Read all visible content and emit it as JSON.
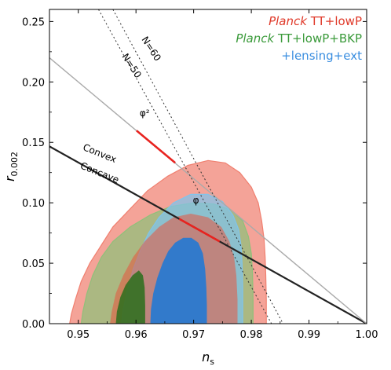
{
  "chart_data": {
    "type": "area",
    "xlabel": "n",
    "xlabel_sub": "s",
    "ylabel": "r",
    "ylabel_sub": "0.002",
    "xlim": [
      0.945,
      1.0
    ],
    "ylim": [
      0.0,
      0.26
    ],
    "x_ticks": [
      0.95,
      0.96,
      0.97,
      0.98,
      0.99,
      1.0
    ],
    "x_tick_labels": [
      "0.95",
      "0.96",
      "0.97",
      "0.98",
      "0.99",
      "1.00"
    ],
    "y_ticks": [
      0.0,
      0.05,
      0.1,
      0.15,
      0.2,
      0.25
    ],
    "y_tick_labels": [
      "0.00",
      "0.05",
      "0.10",
      "0.15",
      "0.20",
      "0.25"
    ],
    "legend_position": "top-right",
    "legend": [
      {
        "italic": "Planck",
        "text": " TT+lowP",
        "color": "#e03a2a"
      },
      {
        "italic": "Planck",
        "text": " TT+lowP+BKP",
        "color": "#3a9a3a"
      },
      {
        "italic": "",
        "text": "+lensing+ext",
        "color": "#3a8ee0"
      }
    ],
    "series": [
      {
        "name": "Planck TT+lowP",
        "color": "#f08070",
        "outer": [
          [
            0.9485,
            0.0
          ],
          [
            0.9488,
            0.008
          ],
          [
            0.9495,
            0.02
          ],
          [
            0.9505,
            0.035
          ],
          [
            0.952,
            0.05
          ],
          [
            0.954,
            0.065
          ],
          [
            0.956,
            0.08
          ],
          [
            0.959,
            0.095
          ],
          [
            0.962,
            0.11
          ],
          [
            0.9655,
            0.122
          ],
          [
            0.969,
            0.131
          ],
          [
            0.9725,
            0.135
          ],
          [
            0.9755,
            0.133
          ],
          [
            0.978,
            0.125
          ],
          [
            0.98,
            0.113
          ],
          [
            0.9812,
            0.1
          ],
          [
            0.9818,
            0.085
          ],
          [
            0.9822,
            0.07
          ],
          [
            0.9824,
            0.055
          ],
          [
            0.9825,
            0.04
          ],
          [
            0.9826,
            0.02
          ],
          [
            0.9826,
            0.0
          ]
        ],
        "inner": [
          [
            0.9555,
            0.0
          ],
          [
            0.9558,
            0.01
          ],
          [
            0.9565,
            0.025
          ],
          [
            0.9578,
            0.04
          ],
          [
            0.9595,
            0.055
          ],
          [
            0.9615,
            0.068
          ],
          [
            0.964,
            0.08
          ],
          [
            0.9665,
            0.088
          ],
          [
            0.9695,
            0.091
          ],
          [
            0.9725,
            0.088
          ],
          [
            0.9748,
            0.08
          ],
          [
            0.9762,
            0.068
          ],
          [
            0.977,
            0.055
          ],
          [
            0.9774,
            0.04
          ],
          [
            0.9776,
            0.02
          ],
          [
            0.9776,
            0.0
          ]
        ]
      },
      {
        "name": "Planck TT+lowP+BKP",
        "color": "#8fc07a",
        "outer": [
          [
            0.9505,
            0.0
          ],
          [
            0.9508,
            0.01
          ],
          [
            0.9515,
            0.025
          ],
          [
            0.9525,
            0.04
          ],
          [
            0.954,
            0.055
          ],
          [
            0.956,
            0.068
          ],
          [
            0.959,
            0.08
          ],
          [
            0.9625,
            0.09
          ],
          [
            0.966,
            0.097
          ],
          [
            0.97,
            0.1
          ],
          [
            0.9735,
            0.099
          ],
          [
            0.9765,
            0.094
          ],
          [
            0.9785,
            0.085
          ],
          [
            0.9795,
            0.072
          ],
          [
            0.98,
            0.058
          ],
          [
            0.9802,
            0.042
          ],
          [
            0.9803,
            0.02
          ],
          [
            0.9803,
            0.0
          ]
        ],
        "inner": [
          [
            0.9565,
            0.0
          ],
          [
            0.9567,
            0.01
          ],
          [
            0.9573,
            0.022
          ],
          [
            0.9582,
            0.032
          ],
          [
            0.9594,
            0.04
          ],
          [
            0.9605,
            0.044
          ],
          [
            0.9612,
            0.04
          ],
          [
            0.9615,
            0.03
          ],
          [
            0.9616,
            0.015
          ],
          [
            0.9616,
            0.0
          ]
        ]
      },
      {
        "name": "+lensing+ext",
        "color": "#7fc4ec",
        "outer": [
          [
            0.9575,
            0.0
          ],
          [
            0.9578,
            0.012
          ],
          [
            0.9585,
            0.028
          ],
          [
            0.9595,
            0.045
          ],
          [
            0.9607,
            0.06
          ],
          [
            0.9622,
            0.075
          ],
          [
            0.964,
            0.088
          ],
          [
            0.9665,
            0.1
          ],
          [
            0.9695,
            0.107
          ],
          [
            0.9725,
            0.107
          ],
          [
            0.975,
            0.101
          ],
          [
            0.9768,
            0.09
          ],
          [
            0.9778,
            0.078
          ],
          [
            0.9782,
            0.065
          ],
          [
            0.9784,
            0.05
          ],
          [
            0.9785,
            0.03
          ],
          [
            0.9785,
            0.0
          ]
        ],
        "inner": [
          [
            0.9625,
            0.0
          ],
          [
            0.9626,
            0.012
          ],
          [
            0.963,
            0.025
          ],
          [
            0.9637,
            0.038
          ],
          [
            0.9646,
            0.05
          ],
          [
            0.9656,
            0.06
          ],
          [
            0.9668,
            0.067
          ],
          [
            0.9682,
            0.071
          ],
          [
            0.9696,
            0.071
          ],
          [
            0.9708,
            0.067
          ],
          [
            0.9716,
            0.058
          ],
          [
            0.972,
            0.045
          ],
          [
            0.9722,
            0.03
          ],
          [
            0.9723,
            0.015
          ],
          [
            0.9723,
            0.0
          ]
        ]
      }
    ],
    "lines": [
      {
        "name": "Convex/Concave boundary",
        "color": "#222222",
        "width": 2.2,
        "points": [
          [
            0.945,
            0.1467
          ],
          [
            1.0,
            0.0
          ]
        ]
      },
      {
        "name": "phi^2 line",
        "color": "#aaaaaa",
        "width": 1.4,
        "points": [
          [
            0.945,
            0.22
          ],
          [
            1.0,
            0.0
          ]
        ]
      },
      {
        "name": "N=50",
        "color": "#333333",
        "width": 1.0,
        "dash": "2,3",
        "points": [
          [
            0.9535,
            0.26
          ],
          [
            0.9835,
            0.0
          ]
        ]
      },
      {
        "name": "N=60",
        "color": "#333333",
        "width": 1.0,
        "dash": "2,3",
        "points": [
          [
            0.956,
            0.26
          ],
          [
            0.9855,
            0.0
          ]
        ]
      },
      {
        "name": "phi^2 prediction",
        "color": "#e8231f",
        "width": 2.6,
        "points": [
          [
            0.9601,
            0.1597
          ],
          [
            0.9668,
            0.1331
          ]
        ]
      },
      {
        "name": "phi prediction",
        "color": "#e8231f",
        "width": 2.6,
        "points": [
          [
            0.9675,
            0.0867
          ],
          [
            0.9745,
            0.068
          ]
        ]
      }
    ],
    "annotations": [
      {
        "text": "N=50",
        "x": 0.9588,
        "y": 0.212,
        "rotate": 57
      },
      {
        "text": "N=60",
        "x": 0.9622,
        "y": 0.226,
        "rotate": 57
      },
      {
        "text": "Convex",
        "x": 0.9535,
        "y": 0.1385,
        "rotate": 22
      },
      {
        "text": "Concave",
        "x": 0.9535,
        "y": 0.1225,
        "rotate": 22
      },
      {
        "text": "φ²",
        "x": 0.9615,
        "y": 0.1715,
        "color": "#e8231f",
        "size": 15
      },
      {
        "text": "φ",
        "x": 0.9704,
        "y": 0.0995,
        "color": "#e8231f",
        "size": 15
      }
    ]
  }
}
